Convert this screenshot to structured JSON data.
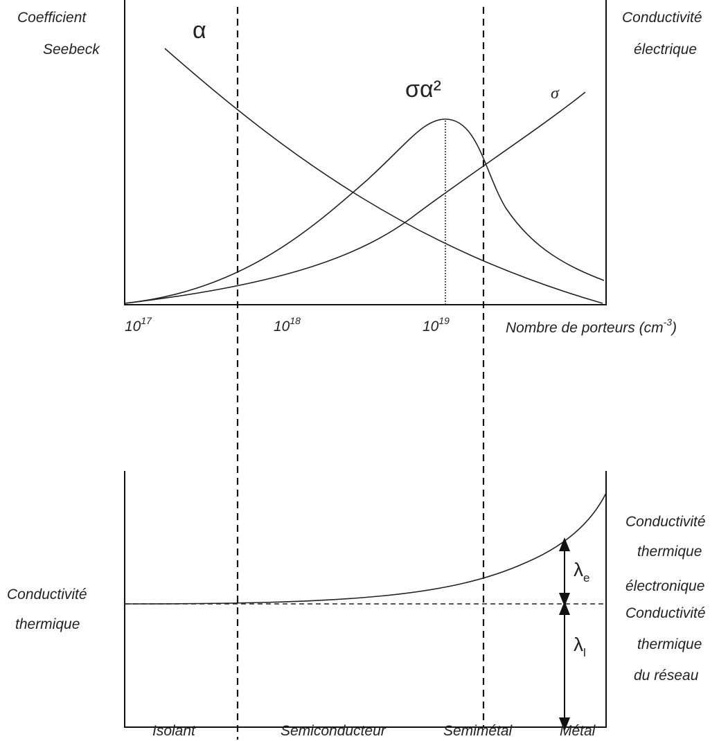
{
  "top_panel": {
    "left_axis_label": [
      "Coefficient",
      "Seebeck"
    ],
    "right_axis_label": [
      "Conductivité",
      "électrique"
    ],
    "curve_labels": {
      "alpha": "α",
      "power_factor": "σα²",
      "sigma": "σ"
    },
    "x_ticks": [
      {
        "base": "10",
        "exponent": "17"
      },
      {
        "base": "10",
        "exponent": "18"
      },
      {
        "base": "10",
        "exponent": "19"
      }
    ],
    "x_axis_label": {
      "text": "Nombre de porteurs (cm",
      "exponent": "-3",
      "suffix": ")"
    }
  },
  "bottom_panel": {
    "left_axis_label": [
      "Conductivité",
      "thermique"
    ],
    "electronic_label": [
      "Conductivité",
      "thermique",
      "électronique"
    ],
    "lattice_label": [
      "Conductivité",
      "thermique",
      "du réseau"
    ],
    "lambda_e": {
      "symbol": "λ",
      "subscript": "e"
    },
    "lambda_l": {
      "symbol": "λ",
      "subscript": "l"
    },
    "regions": [
      "Isolant",
      "Semiconducteur",
      "Semimétal",
      "Métal"
    ]
  }
}
